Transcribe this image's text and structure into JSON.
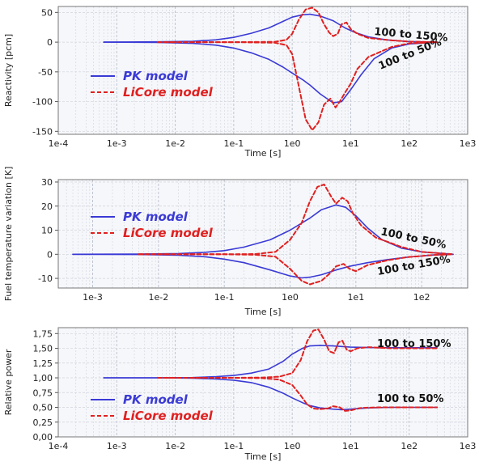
{
  "colors": {
    "pk": "#3a3ad6",
    "licore": "#e02020",
    "grid": "#cfd3dc",
    "plot_bg": "#f6f7fa"
  },
  "chart_data": [
    {
      "type": "line",
      "title": "",
      "xlabel": "Time [s]",
      "ylabel": "Reactivity [pcm]",
      "xscale": "log",
      "xlim": [
        0.0001,
        1000
      ],
      "ylim": [
        -155,
        60
      ],
      "xticks": [
        0.0001,
        0.001,
        0.01,
        0.1,
        1,
        10,
        100,
        1000
      ],
      "xticklabels": [
        "1e-4",
        "1e-3",
        "1e-2",
        "1e-1",
        "1e0",
        "1e1",
        "1e2",
        "1e3"
      ],
      "yticks": [
        -150,
        -100,
        -50,
        0,
        50
      ],
      "yticklabels": [
        "-150",
        "-100",
        "-50",
        "0",
        "50"
      ],
      "legend": {
        "position": "bottom-left",
        "entries": [
          "PK model",
          "LiCore model"
        ]
      },
      "annotations": [
        "100 to 150%",
        "100 to 50%"
      ],
      "series": [
        {
          "name": "PK model",
          "style": "solid",
          "x": [
            0.0006,
            0.005,
            0.02,
            0.05,
            0.1,
            0.2,
            0.4,
            0.7,
            1,
            1.5,
            2,
            3,
            5,
            8,
            12,
            20,
            40,
            100,
            300
          ],
          "y": [
            0,
            0.5,
            1.5,
            4,
            8,
            15,
            24,
            35,
            42,
            46,
            47,
            44,
            36,
            24,
            16,
            9,
            4,
            1,
            0
          ]
        },
        {
          "name": "",
          "style": "solid",
          "x": [
            0.0006,
            0.005,
            0.02,
            0.05,
            0.1,
            0.2,
            0.4,
            0.7,
            1,
            1.5,
            2,
            3,
            5,
            7,
            10,
            15,
            25,
            50,
            100,
            300
          ],
          "y": [
            0,
            -0.5,
            -2,
            -5,
            -10,
            -18,
            -29,
            -42,
            -52,
            -63,
            -72,
            -87,
            -102,
            -100,
            -80,
            -55,
            -28,
            -10,
            -3,
            0
          ]
        },
        {
          "name": "LiCore model",
          "style": "dashed",
          "x": [
            0.005,
            0.1,
            0.5,
            0.8,
            1,
            1.3,
            1.7,
            2.2,
            2.8,
            3.5,
            4.3,
            5,
            6,
            7,
            8.5,
            10,
            13,
            20,
            50,
            100,
            300
          ],
          "y": [
            0,
            0,
            0.5,
            4,
            14,
            38,
            55,
            58,
            50,
            30,
            16,
            10,
            14,
            30,
            33,
            22,
            14,
            7,
            3,
            1,
            0
          ]
        },
        {
          "name": "",
          "style": "dashed",
          "x": [
            0.005,
            0.1,
            0.5,
            0.8,
            1,
            1.3,
            1.7,
            2.2,
            2.8,
            3.5,
            4.5,
            5.5,
            6.5,
            8,
            10,
            13,
            20,
            50,
            100,
            300
          ],
          "y": [
            0,
            0,
            -1,
            -5,
            -20,
            -75,
            -130,
            -148,
            -135,
            -105,
            -95,
            -110,
            -100,
            -85,
            -70,
            -45,
            -25,
            -8,
            -2,
            0
          ]
        }
      ]
    },
    {
      "type": "line",
      "title": "",
      "xlabel": "Time [s]",
      "ylabel": "Fuel temperature variation [K]",
      "xscale": "log",
      "xlim": [
        0.0003,
        500
      ],
      "ylim": [
        -14,
        31
      ],
      "xticks": [
        0.001,
        0.01,
        0.1,
        1,
        10,
        100
      ],
      "xticklabels": [
        "1e-3",
        "1e-2",
        "1e-1",
        "1e0",
        "1e1",
        "1e2"
      ],
      "yticks": [
        -10,
        0,
        10,
        20,
        30
      ],
      "yticklabels": [
        "-10",
        "0",
        "10",
        "20",
        "30"
      ],
      "legend": {
        "position": "center-left",
        "entries": [
          "PK model",
          "LiCore model"
        ]
      },
      "annotations": [
        "100 to 50%",
        "100 to 150%"
      ],
      "series": [
        {
          "name": "PK model",
          "style": "solid",
          "x": [
            0.0005,
            0.005,
            0.02,
            0.05,
            0.1,
            0.2,
            0.5,
            1,
            2,
            3,
            5,
            7,
            10,
            15,
            25,
            50,
            100,
            300
          ],
          "y": [
            0,
            0.1,
            0.3,
            0.8,
            1.5,
            3,
            6,
            10,
            15,
            18.5,
            20.5,
            19.5,
            16,
            11,
            6,
            2.5,
            1,
            0
          ]
        },
        {
          "name": "",
          "style": "solid",
          "x": [
            0.0005,
            0.005,
            0.02,
            0.05,
            0.1,
            0.2,
            0.5,
            1,
            1.5,
            2,
            3,
            5,
            8,
            15,
            30,
            60,
            150,
            300
          ],
          "y": [
            0,
            -0.1,
            -0.4,
            -1,
            -2,
            -3.5,
            -6.5,
            -9,
            -9.8,
            -9.5,
            -8.5,
            -6.5,
            -5,
            -3.5,
            -2.2,
            -1.2,
            -0.3,
            0
          ]
        },
        {
          "name": "LiCore model",
          "style": "dashed",
          "x": [
            0.005,
            0.1,
            0.3,
            0.6,
            1,
            1.5,
            2,
            2.6,
            3.3,
            4.2,
            5,
            6.2,
            7.5,
            9,
            12,
            20,
            50,
            100,
            300
          ],
          "y": [
            0,
            0,
            0.1,
            1,
            6,
            13,
            22,
            28,
            29,
            24,
            21,
            23.5,
            22,
            17,
            12,
            7,
            3,
            1,
            0
          ]
        },
        {
          "name": "",
          "style": "dashed",
          "x": [
            0.005,
            0.1,
            0.3,
            0.6,
            1,
            1.5,
            2,
            3,
            4,
            5,
            6.5,
            8,
            10,
            15,
            30,
            60,
            150,
            300
          ],
          "y": [
            0,
            0,
            -0.2,
            -1,
            -6,
            -11,
            -12.5,
            -11,
            -8,
            -5,
            -4,
            -6,
            -7,
            -4.5,
            -2.5,
            -1.2,
            -0.3,
            0
          ]
        }
      ]
    },
    {
      "type": "line",
      "title": "",
      "xlabel": "Time [s]",
      "ylabel": "Relative power",
      "xscale": "log",
      "xlim": [
        0.0001,
        1000
      ],
      "ylim": [
        0,
        1.85
      ],
      "xticks": [
        0.0001,
        0.001,
        0.01,
        0.1,
        1,
        10,
        100,
        1000
      ],
      "xticklabels": [
        "1e-4",
        "1e-3",
        "1e-2",
        "1e-1",
        "1e0",
        "1e1",
        "1e2",
        "1e3"
      ],
      "yticks": [
        0,
        0.25,
        0.5,
        0.75,
        1,
        1.25,
        1.5,
        1.75
      ],
      "yticklabels": [
        "0,00",
        "0,25",
        "0,50",
        "0,75",
        "1,00",
        "1,25",
        "1,50",
        "1,75"
      ],
      "legend": {
        "position": "bottom-left",
        "entries": [
          "PK model",
          "LiCore model"
        ]
      },
      "annotations": [
        "100 to 150%",
        "100 to 50%"
      ],
      "series": [
        {
          "name": "PK model",
          "style": "solid",
          "x": [
            0.0006,
            0.005,
            0.02,
            0.05,
            0.1,
            0.2,
            0.4,
            0.7,
            1,
            1.5,
            2,
            3,
            5,
            10,
            30,
            100,
            300
          ],
          "y": [
            1,
            1,
            1.005,
            1.02,
            1.04,
            1.08,
            1.15,
            1.28,
            1.4,
            1.5,
            1.54,
            1.55,
            1.54,
            1.52,
            1.51,
            1.51,
            1.51
          ]
        },
        {
          "name": "",
          "style": "solid",
          "x": [
            0.0006,
            0.005,
            0.02,
            0.05,
            0.1,
            0.2,
            0.4,
            0.7,
            1,
            1.5,
            2,
            3,
            5,
            7,
            10,
            20,
            50,
            100,
            300
          ],
          "y": [
            1,
            1,
            0.995,
            0.98,
            0.96,
            0.92,
            0.84,
            0.74,
            0.66,
            0.58,
            0.53,
            0.49,
            0.47,
            0.46,
            0.47,
            0.49,
            0.5,
            0.5,
            0.5
          ]
        },
        {
          "name": "LiCore model",
          "style": "dashed",
          "x": [
            0.005,
            0.1,
            0.3,
            0.6,
            1,
            1.4,
            1.8,
            2.3,
            2.8,
            3.5,
            4.3,
            5.2,
            6.2,
            7.2,
            8.5,
            10,
            13,
            20,
            50,
            100,
            300
          ],
          "y": [
            1,
            1,
            1.005,
            1.02,
            1.08,
            1.3,
            1.62,
            1.8,
            1.82,
            1.65,
            1.45,
            1.42,
            1.6,
            1.63,
            1.48,
            1.45,
            1.5,
            1.52,
            1.5,
            1.5,
            1.5
          ]
        },
        {
          "name": "",
          "style": "dashed",
          "x": [
            0.005,
            0.1,
            0.3,
            0.6,
            1,
            1.4,
            1.8,
            2.3,
            3,
            4,
            5,
            6.5,
            8,
            10,
            15,
            30,
            100,
            300
          ],
          "y": [
            1,
            1,
            0.995,
            0.97,
            0.88,
            0.7,
            0.55,
            0.48,
            0.47,
            0.48,
            0.52,
            0.5,
            0.44,
            0.45,
            0.49,
            0.5,
            0.5,
            0.5
          ]
        }
      ]
    }
  ]
}
